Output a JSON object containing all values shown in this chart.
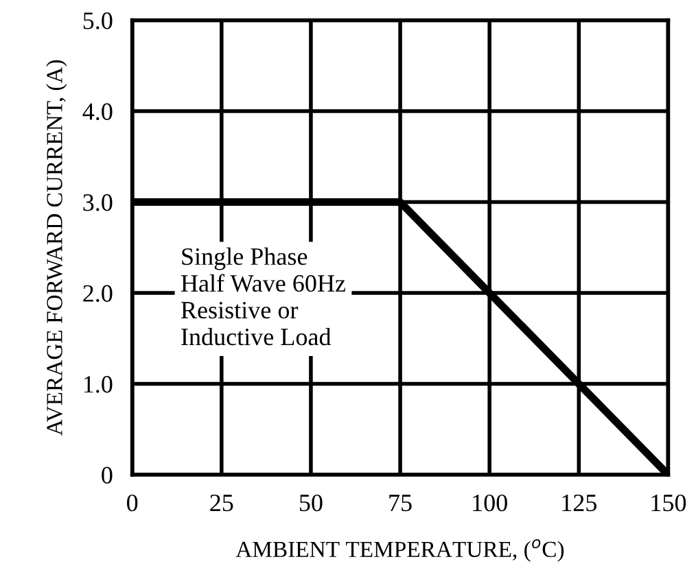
{
  "chart_data": {
    "type": "line",
    "xlabel": "AMBIENT TEMPERATURE, ($^{o}$C)",
    "ylabel": "AVERAGE FORWARD CURRENT, (A)",
    "x": [
      0,
      75,
      150
    ],
    "series": [
      {
        "color": "#000000",
        "values": [
          3.0,
          3.0,
          0
        ]
      }
    ],
    "xlim": [
      0,
      150
    ],
    "ylim": [
      0,
      5
    ],
    "xticks": [
      0,
      25,
      50,
      75,
      100,
      125,
      150
    ],
    "yticks": [
      {
        "value": 0,
        "label": "0"
      },
      {
        "value": 1,
        "label": "1.0"
      },
      {
        "value": 2,
        "label": "2.0"
      },
      {
        "value": 3,
        "label": "3.0"
      },
      {
        "value": 4,
        "label": "4.0"
      },
      {
        "value": 5,
        "label": "5.0"
      }
    ],
    "grid": true,
    "annotations": [
      "Single Phase\nHalf Wave 60Hz\nResistive or\nInductive Load"
    ]
  }
}
